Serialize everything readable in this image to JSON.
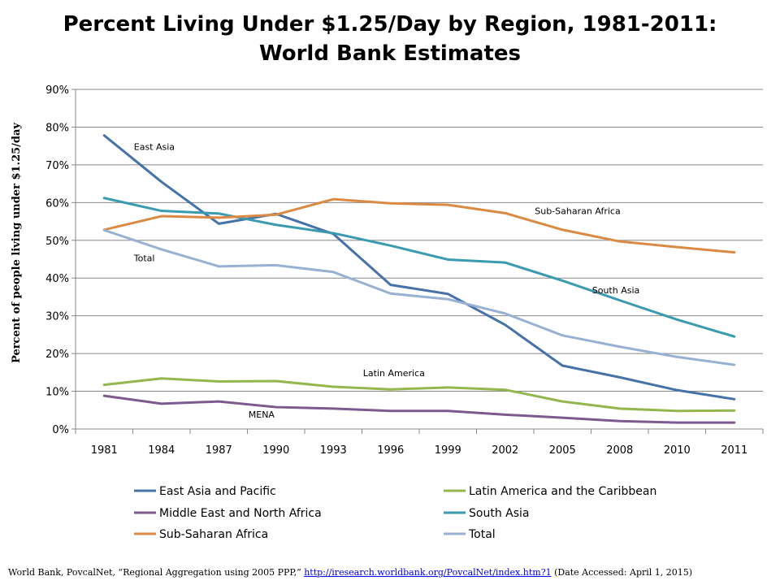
{
  "chart_data": {
    "type": "line",
    "title_line1": "Percent Living Under $1.25/Day by Region, 1981-2011:",
    "title_line2": "World Bank Estimates",
    "ylabel": "Percent of people living under $1.25/day",
    "xlabel": "",
    "ylim": [
      0,
      90
    ],
    "yticks": [
      "0%",
      "10%",
      "20%",
      "30%",
      "40%",
      "50%",
      "60%",
      "70%",
      "80%",
      "90%"
    ],
    "categories": [
      "1981",
      "1984",
      "1987",
      "1990",
      "1993",
      "1996",
      "1999",
      "2002",
      "2005",
      "2008",
      "2010",
      "2011"
    ],
    "grid": true,
    "legend_position": "bottom",
    "series": [
      {
        "name": "East Asia and Pacific",
        "color": "#4572A7",
        "values": [
          77.8,
          65.5,
          54.4,
          57.0,
          51.7,
          38.2,
          35.8,
          27.6,
          16.8,
          13.7,
          10.3,
          7.9
        ]
      },
      {
        "name": "Latin America and the Caribbean",
        "color": "#93B64D",
        "values": [
          11.7,
          13.4,
          12.6,
          12.7,
          11.2,
          10.5,
          11.0,
          10.4,
          7.3,
          5.4,
          4.8,
          4.9
        ]
      },
      {
        "name": "Middle East and North Africa",
        "color": "#7D5A8E",
        "values": [
          8.8,
          6.7,
          7.3,
          5.8,
          5.4,
          4.8,
          4.8,
          3.8,
          3.0,
          2.1,
          1.7,
          1.7
        ]
      },
      {
        "name": "South Asia",
        "color": "#3A9AB0",
        "values": [
          61.2,
          57.8,
          57.1,
          54.1,
          51.9,
          48.6,
          44.9,
          44.1,
          39.3,
          34.1,
          29.0,
          24.5
        ]
      },
      {
        "name": "Sub-Saharan Africa",
        "color": "#DB8A44",
        "values": [
          52.8,
          56.4,
          56.0,
          56.8,
          60.9,
          59.8,
          59.4,
          57.2,
          52.8,
          49.7,
          48.2,
          46.8
        ]
      },
      {
        "name": "Total",
        "color": "#98B1D3",
        "values": [
          52.7,
          47.6,
          43.1,
          43.4,
          41.6,
          35.9,
          34.4,
          30.6,
          24.8,
          21.8,
          19.1,
          17.0
        ]
      }
    ],
    "annotations": [
      {
        "text": "East Asia",
        "x": "1984",
        "y": 74
      },
      {
        "text": "Sub-Saharan Africa",
        "x": "2005",
        "y": 57
      },
      {
        "text": "Total",
        "x": "1984",
        "y": 44.5
      },
      {
        "text": "South Asia",
        "x": "2008",
        "y": 36
      },
      {
        "text": "Latin America",
        "x": "1996",
        "y": 14
      },
      {
        "text": "MENA",
        "x": "1990",
        "y": 3
      }
    ]
  },
  "source": {
    "prefix": "World Bank, PovcalNet, “Regional Aggregation using 2005 PPP,” ",
    "link": "http://iresearch.worldbank.org/PovcalNet/index.htm?1",
    "suffix": " (Date Accessed: April  1, 2015)"
  }
}
